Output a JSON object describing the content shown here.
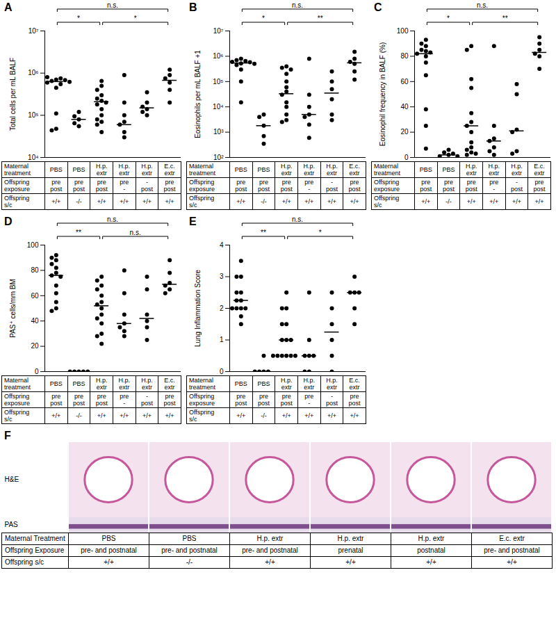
{
  "chart_data": [
    {
      "panel": "A",
      "type": "scatter",
      "y_label": "Total cells per mL BALF",
      "log": "y",
      "color": "#000000",
      "marker": "circle",
      "categories": [
        null,
        null,
        null,
        null,
        null,
        null
      ],
      "values": [
        [
          700000,
          650000,
          750000,
          600000,
          680000,
          720000,
          550000,
          800000,
          620000,
          450000,
          110000,
          48000,
          44000
        ],
        [
          120000,
          95000,
          80000,
          65000,
          55000
        ],
        [
          650000,
          500000,
          400000,
          300000,
          250000,
          220000,
          200000,
          180000,
          140000,
          100000,
          80000,
          70000,
          60000,
          40000
        ],
        [
          900000,
          200000,
          100000,
          70000,
          60000,
          40000,
          30000
        ],
        [
          350000,
          200000,
          160000,
          140000,
          120000,
          100000
        ],
        [
          1200000,
          900000,
          750000,
          600000,
          400000,
          200000
        ]
      ],
      "medians": [
        630000,
        80000,
        210000,
        60000,
        150000,
        675000
      ],
      "ylim": [
        10000,
        10000000
      ],
      "yticks": [
        {
          "value": 10000,
          "label": "10⁴"
        },
        {
          "value": 100000,
          "label": "10⁵"
        },
        {
          "value": 1000000,
          "label": "10⁶"
        },
        {
          "value": 10000000,
          "label": "10⁷"
        }
      ],
      "significance": [
        {
          "groups": [
            0,
            5
          ],
          "label": "n.s."
        },
        {
          "groups": [
            0,
            2
          ],
          "label": "*"
        },
        {
          "groups": [
            2,
            5
          ],
          "label": "*"
        }
      ]
    },
    {
      "panel": "B",
      "type": "scatter",
      "y_label": "Eosinophils per mL BALF +1",
      "log": "y",
      "color": "#000000",
      "marker": "circle",
      "categories": [
        null,
        null,
        null,
        null,
        null,
        null
      ],
      "values": [
        [
          800000,
          700000,
          650000,
          600000,
          580000,
          550000,
          520000,
          500000,
          480000,
          450000,
          300000,
          100000,
          15000
        ],
        [
          5000,
          4000,
          1800,
          700,
          350
        ],
        [
          400000,
          350000,
          300000,
          200000,
          100000,
          60000,
          40000,
          30000,
          15000,
          10000,
          5000,
          3000,
          2500
        ],
        [
          800000,
          30000,
          10000,
          5000,
          4000,
          2000,
          600
        ],
        [
          250000,
          100000,
          50000,
          20000,
          5000,
          3000
        ],
        [
          1500000,
          800000,
          600000,
          500000,
          250000,
          120000
        ]
      ],
      "medians": [
        540000,
        1800,
        33000,
        5000,
        35000,
        550000
      ],
      "ylim": [
        100,
        10000000
      ],
      "yticks": [
        {
          "value": 100,
          "label": "10²"
        },
        {
          "value": 1000,
          "label": "10³"
        },
        {
          "value": 10000,
          "label": "10⁴"
        },
        {
          "value": 100000,
          "label": "10⁵"
        },
        {
          "value": 1000000,
          "label": "10⁶"
        },
        {
          "value": 10000000,
          "label": "10⁷"
        }
      ],
      "significance": [
        {
          "groups": [
            0,
            5
          ],
          "label": "n.s."
        },
        {
          "groups": [
            0,
            2
          ],
          "label": "*"
        },
        {
          "groups": [
            2,
            5
          ],
          "label": "**"
        }
      ]
    },
    {
      "panel": "C",
      "type": "scatter",
      "y_label": "Eosinophil frequency in BALF (%)",
      "color": "#000000",
      "marker": "circle",
      "categories": [
        null,
        null,
        null,
        null,
        null,
        null
      ],
      "values": [
        [
          93,
          90,
          88,
          85,
          84,
          83,
          82,
          80,
          75,
          65,
          38,
          25,
          7
        ],
        [
          6,
          4,
          3,
          2,
          1,
          1
        ],
        [
          88,
          85,
          62,
          55,
          35,
          28,
          25,
          20,
          12,
          8,
          6,
          4,
          3,
          2
        ],
        [
          88,
          25,
          15,
          13,
          8,
          5,
          2
        ],
        [
          58,
          50,
          22,
          20,
          5,
          3
        ],
        [
          95,
          90,
          85,
          82,
          80,
          70
        ]
      ],
      "medians": [
        82,
        2,
        25,
        13,
        21,
        83
      ],
      "ylim": [
        0,
        100
      ],
      "yticks": [
        0,
        20,
        40,
        60,
        80,
        100
      ],
      "significance": [
        {
          "groups": [
            0,
            5
          ],
          "label": "n.s."
        },
        {
          "groups": [
            0,
            2
          ],
          "label": "*"
        },
        {
          "groups": [
            2,
            5
          ],
          "label": "**"
        }
      ]
    },
    {
      "panel": "D",
      "type": "scatter",
      "y_label": "PAS⁺ cells/mm BM",
      "color": "#000000",
      "marker": "circle",
      "categories": [
        null,
        null,
        null,
        null,
        null,
        null
      ],
      "values": [
        [
          92,
          90,
          88,
          85,
          82,
          78,
          76,
          75,
          68,
          62,
          55,
          50,
          48
        ],
        [
          0,
          0,
          0,
          0,
          0
        ],
        [
          75,
          72,
          68,
          65,
          60,
          55,
          53,
          50,
          45,
          42,
          38,
          30,
          28,
          22
        ],
        [
          80,
          62,
          45,
          38,
          35,
          32,
          28
        ],
        [
          75,
          65,
          45,
          40,
          35,
          25
        ],
        [
          88,
          78,
          70,
          68,
          65,
          62
        ]
      ],
      "medians": [
        76,
        0,
        52,
        38,
        42,
        69
      ],
      "ylim": [
        0,
        100
      ],
      "yticks": [
        0,
        20,
        40,
        60,
        80,
        100
      ],
      "significance": [
        {
          "groups": [
            0,
            5
          ],
          "label": "n.s."
        },
        {
          "groups": [
            0,
            2
          ],
          "label": "**"
        },
        {
          "groups": [
            2,
            5
          ],
          "label": "n.s."
        }
      ]
    },
    {
      "panel": "E",
      "type": "scatter",
      "y_label": "Lung Inflammation Score",
      "color": "#000000",
      "marker": "circle",
      "categories": [
        null,
        null,
        null,
        null,
        null,
        null
      ],
      "values": [
        [
          3.5,
          3,
          3,
          2.5,
          2.5,
          2.25,
          2.25,
          2,
          2,
          2,
          2,
          1.75,
          1.5
        ],
        [
          0.5,
          0,
          0,
          0,
          0
        ],
        [
          2.5,
          2,
          2,
          1.5,
          1.5,
          1,
          1,
          1,
          0.5,
          0.5,
          0.5,
          0.5,
          0.5,
          0.5
        ],
        [
          2.5,
          1,
          0.5,
          0.5,
          0.5,
          0,
          0
        ],
        [
          2.5,
          2,
          1.5,
          1,
          0.5,
          0
        ],
        [
          3,
          2.5,
          2.5,
          2.5,
          2,
          1.5
        ]
      ],
      "medians": [
        2.25,
        0,
        1,
        0.5,
        1.25,
        2.5
      ],
      "ylim": [
        0,
        4
      ],
      "yticks": [
        0,
        1,
        2,
        3,
        4
      ],
      "significance": [
        {
          "groups": [
            0,
            5
          ],
          "label": "n.s."
        },
        {
          "groups": [
            0,
            2
          ],
          "label": "**"
        },
        {
          "groups": [
            2,
            5
          ],
          "label": "*"
        }
      ]
    }
  ],
  "condition_table": {
    "rows": [
      {
        "label": [
          "Maternal",
          "treatment"
        ],
        "cells": [
          [
            "PBS"
          ],
          [
            "PBS"
          ],
          [
            "H.p.",
            "extr"
          ],
          [
            "H.p.",
            "extr"
          ],
          [
            "H.p.",
            "extr"
          ],
          [
            "E.c.",
            "extr"
          ]
        ]
      },
      {
        "label": [
          "Offspring",
          "exposure"
        ],
        "cells": [
          [
            "pre",
            "post"
          ],
          [
            "pre",
            "post"
          ],
          [
            "pre",
            "post"
          ],
          [
            "pre",
            "-"
          ],
          [
            "-",
            "post"
          ],
          [
            "pre",
            "post"
          ]
        ]
      },
      {
        "label": [
          "Offspring",
          "s/c"
        ],
        "cells": [
          [
            "+/+"
          ],
          [
            "-/-"
          ],
          [
            "+/+"
          ],
          [
            "+/+"
          ],
          [
            "+/+"
          ],
          [
            "+/+"
          ]
        ]
      }
    ]
  },
  "panel_f": {
    "panel": "F",
    "image_rows": [
      "H&E",
      "PAS"
    ],
    "rows": [
      {
        "label": "Maternal Treatment",
        "cells": [
          "PBS",
          "PBS",
          "H.p. extr",
          "H.p. extr",
          "H.p. extr",
          "E.c. extr"
        ]
      },
      {
        "label": "Offspring Exposure",
        "cells": [
          "pre- and postnatal",
          "pre- and postnatal",
          "pre- and postnatal",
          "prenatal",
          "postnatal",
          "pre- and postnatal"
        ]
      },
      {
        "label": "Offspring s/c",
        "cells": [
          "+/+",
          "-/-",
          "+/+",
          "+/+",
          "+/+",
          "+/+"
        ]
      }
    ]
  }
}
